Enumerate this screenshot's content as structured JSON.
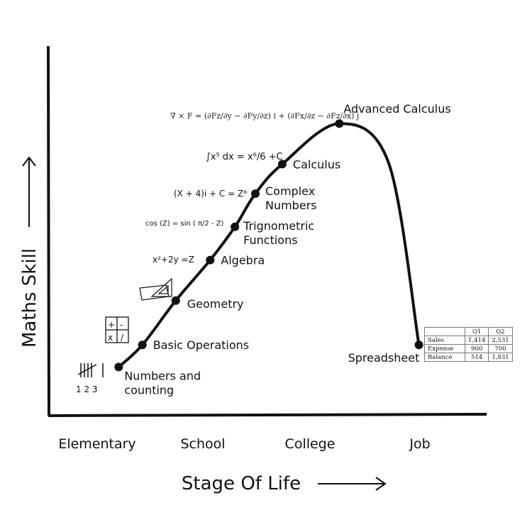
{
  "chart_data": {
    "type": "line",
    "title": "",
    "xlabel": "Stage Of Life",
    "ylabel": "Maths Skill",
    "x_categories": [
      "Elementary",
      "School",
      "College",
      "Job"
    ],
    "grid": false,
    "series": [
      {
        "points": [
          {
            "label": "Numbers and counting",
            "stage": 0.2,
            "skill": 13
          },
          {
            "label": "Basic Operations",
            "stage": 0.42,
            "skill": 19
          },
          {
            "label": "Geometry",
            "stage": 0.73,
            "skill": 31
          },
          {
            "label": "Algebra",
            "stage": 1.05,
            "skill": 42
          },
          {
            "label": "Trignometric Functions",
            "stage": 1.28,
            "skill": 51
          },
          {
            "label": "Complex Numbers",
            "stage": 1.47,
            "skill": 60
          },
          {
            "label": "Calculus",
            "stage": 1.72,
            "skill": 68
          },
          {
            "label": "Advanced Calculus",
            "stage": 2.25,
            "skill": 79
          },
          {
            "label": "Spreadsheet",
            "stage": 2.99,
            "skill": 19
          }
        ]
      }
    ],
    "annotations": {
      "tally": "1 2 3",
      "ops": [
        "+",
        "-",
        "x",
        "/"
      ],
      "algebra": "x²+2y =Z",
      "trig": "cos (Z) = sin ( π/2 - Z)",
      "complex": "(X + 4)i + C = Z⁶",
      "integral": "∫x⁵ dx = x⁶/6 +C",
      "curl": "∇ × F = (∂Fz/∂y − ∂Fy/∂z) i + (∂Fx/∂z − ∂Fz/∂x) j"
    },
    "spreadsheet": {
      "columns": [
        "",
        "Q1",
        "Q2"
      ],
      "rows": [
        [
          "Sales",
          "1,414",
          "2,531"
        ],
        [
          "Expense",
          "900",
          "700"
        ],
        [
          "Balance",
          "514",
          "1,831"
        ]
      ]
    }
  }
}
